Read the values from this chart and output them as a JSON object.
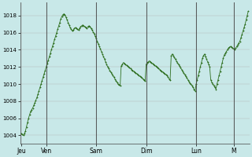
{
  "background_color": "#c8e8e8",
  "plot_bg_color": "#c8e8e8",
  "line_color": "#2d6e1e",
  "marker_color": "#2d6e1e",
  "grid_color": "#aaaaaa",
  "ylim": [
    1003.0,
    1019.5
  ],
  "yticks": [
    1004,
    1006,
    1008,
    1010,
    1012,
    1014,
    1016,
    1018
  ],
  "day_labels": [
    "Jeu",
    "Ven",
    "Sam",
    "Dim",
    "Lun",
    "M"
  ],
  "day_positions": [
    0,
    24,
    72,
    120,
    168,
    204
  ],
  "pressure": [
    1004.2,
    1004.1,
    1004.0,
    1004.2,
    1004.5,
    1005.0,
    1005.5,
    1006.0,
    1006.4,
    1006.8,
    1007.0,
    1007.2,
    1007.5,
    1007.8,
    1008.1,
    1008.4,
    1008.8,
    1009.2,
    1009.6,
    1010.0,
    1010.4,
    1010.8,
    1011.2,
    1011.6,
    1012.0,
    1012.4,
    1012.8,
    1013.2,
    1013.6,
    1014.0,
    1014.4,
    1014.8,
    1015.2,
    1015.6,
    1016.0,
    1016.4,
    1016.8,
    1017.2,
    1017.6,
    1017.9,
    1018.1,
    1018.2,
    1018.1,
    1017.8,
    1017.5,
    1017.2,
    1016.9,
    1016.6,
    1016.4,
    1016.2,
    1016.3,
    1016.5,
    1016.6,
    1016.5,
    1016.4,
    1016.3,
    1016.5,
    1016.7,
    1016.8,
    1016.9,
    1016.8,
    1016.7,
    1016.6,
    1016.5,
    1016.7,
    1016.8,
    1016.7,
    1016.5,
    1016.3,
    1016.1,
    1015.9,
    1015.6,
    1015.3,
    1015.0,
    1014.7,
    1014.4,
    1014.1,
    1013.8,
    1013.5,
    1013.2,
    1012.9,
    1012.6,
    1012.3,
    1012.0,
    1011.8,
    1011.6,
    1011.4,
    1011.2,
    1011.0,
    1010.8,
    1010.6,
    1010.4,
    1010.2,
    1010.0,
    1009.9,
    1009.8,
    1012.1,
    1012.3,
    1012.5,
    1012.4,
    1012.3,
    1012.2,
    1012.1,
    1012.0,
    1011.9,
    1011.8,
    1011.7,
    1011.6,
    1011.5,
    1011.4,
    1011.3,
    1011.2,
    1011.1,
    1011.0,
    1010.9,
    1010.8,
    1010.7,
    1010.6,
    1010.5,
    1010.4,
    1012.3,
    1012.5,
    1012.6,
    1012.7,
    1012.6,
    1012.5,
    1012.4,
    1012.3,
    1012.2,
    1012.1,
    1012.0,
    1011.9,
    1011.8,
    1011.7,
    1011.6,
    1011.5,
    1011.4,
    1011.3,
    1011.2,
    1011.1,
    1011.0,
    1010.8,
    1010.6,
    1010.5,
    1013.3,
    1013.5,
    1013.3,
    1013.1,
    1012.9,
    1012.7,
    1012.5,
    1012.3,
    1012.1,
    1011.9,
    1011.7,
    1011.5,
    1011.3,
    1011.1,
    1010.9,
    1010.7,
    1010.5,
    1010.3,
    1010.1,
    1010.0,
    1009.8,
    1009.6,
    1009.4,
    1009.2,
    1010.0,
    1010.5,
    1011.0,
    1011.5,
    1012.0,
    1012.5,
    1013.0,
    1013.3,
    1013.5,
    1013.2,
    1012.9,
    1012.6,
    1012.3,
    1012.0,
    1010.5,
    1010.2,
    1010.0,
    1009.8,
    1009.6,
    1009.4,
    1010.0,
    1010.5,
    1011.0,
    1011.5,
    1012.0,
    1012.5,
    1013.0,
    1013.4,
    1013.6,
    1013.8,
    1014.0,
    1014.2,
    1014.3,
    1014.4,
    1014.3,
    1014.2,
    1014.1,
    1014.0,
    1014.2,
    1014.4,
    1014.6,
    1014.8,
    1015.0,
    1015.4,
    1015.8,
    1016.2,
    1016.6,
    1017.0,
    1017.5,
    1018.0,
    1018.5
  ]
}
